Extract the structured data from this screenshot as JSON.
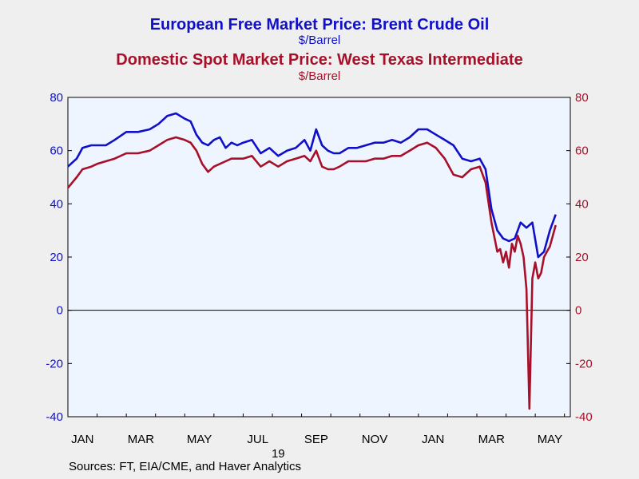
{
  "chart_data": {
    "type": "line",
    "title_1": "European Free Market Price: Brent Crude Oil",
    "unit_1": "$/Barrel",
    "title_2": "Domestic Spot Market Price: West Texas Intermediate",
    "unit_2": "$/Barrel",
    "ylim": [
      -40,
      80
    ],
    "yticks": [
      -40,
      -20,
      0,
      20,
      40,
      60,
      80
    ],
    "x_tick_labels": [
      "JAN",
      "MAR",
      "MAY",
      "JUL",
      "SEP",
      "NOV",
      "JAN",
      "MAR",
      "MAY"
    ],
    "x_tick_positions": [
      0.5,
      2.5,
      4.5,
      6.5,
      8.5,
      10.5,
      12.5,
      14.5,
      16.5
    ],
    "xlim": [
      0,
      17.2
    ],
    "year_label": "19",
    "source": "Sources:    FT, EIA/CME, and Haver Analytics",
    "series": [
      {
        "color": "#1010c8",
        "x": [
          0,
          0.3,
          0.5,
          0.8,
          1.0,
          1.3,
          1.6,
          2.0,
          2.4,
          2.8,
          3.1,
          3.4,
          3.7,
          4.0,
          4.2,
          4.4,
          4.6,
          4.8,
          5.0,
          5.2,
          5.4,
          5.6,
          5.8,
          6.0,
          6.3,
          6.6,
          6.9,
          7.2,
          7.5,
          7.8,
          8.1,
          8.3,
          8.5,
          8.7,
          8.9,
          9.1,
          9.3,
          9.6,
          9.9,
          10.2,
          10.5,
          10.8,
          11.1,
          11.4,
          11.7,
          12.0,
          12.3,
          12.6,
          12.9,
          13.2,
          13.5,
          13.8,
          14.1,
          14.3,
          14.5,
          14.7,
          14.9,
          15.1,
          15.3,
          15.5,
          15.7,
          15.9,
          16.1,
          16.3,
          16.5,
          16.7
        ],
        "values": [
          54,
          57,
          61,
          62,
          62,
          62,
          64,
          67,
          67,
          68,
          70,
          73,
          74,
          72,
          71,
          66,
          63,
          62,
          64,
          65,
          61,
          63,
          62,
          63,
          64,
          59,
          61,
          58,
          60,
          61,
          64,
          60,
          68,
          62,
          60,
          59,
          59,
          61,
          61,
          62,
          63,
          63,
          64,
          63,
          65,
          68,
          68,
          66,
          64,
          62,
          57,
          56,
          57,
          53,
          38,
          30,
          27,
          26,
          27,
          33,
          31,
          33,
          20,
          22,
          30,
          36
        ]
      },
      {
        "color": "#a8102a",
        "x": [
          0,
          0.3,
          0.5,
          0.8,
          1.0,
          1.3,
          1.6,
          2.0,
          2.4,
          2.8,
          3.1,
          3.4,
          3.7,
          4.0,
          4.2,
          4.4,
          4.6,
          4.8,
          5.0,
          5.2,
          5.4,
          5.6,
          5.8,
          6.0,
          6.3,
          6.6,
          6.9,
          7.2,
          7.5,
          7.8,
          8.1,
          8.3,
          8.5,
          8.7,
          8.9,
          9.1,
          9.3,
          9.6,
          9.9,
          10.2,
          10.5,
          10.8,
          11.1,
          11.4,
          11.7,
          12.0,
          12.3,
          12.6,
          12.9,
          13.2,
          13.5,
          13.8,
          14.1,
          14.3,
          14.5,
          14.7,
          14.8,
          14.9,
          15.0,
          15.1,
          15.2,
          15.3,
          15.4,
          15.5,
          15.6,
          15.7,
          15.8,
          15.9,
          16.0,
          16.1,
          16.2,
          16.3,
          16.4,
          16.5,
          16.6,
          16.7
        ],
        "values": [
          46,
          50,
          53,
          54,
          55,
          56,
          57,
          59,
          59,
          60,
          62,
          64,
          65,
          64,
          63,
          60,
          55,
          52,
          54,
          55,
          56,
          57,
          57,
          57,
          58,
          54,
          56,
          54,
          56,
          57,
          58,
          56,
          60,
          54,
          53,
          53,
          54,
          56,
          56,
          56,
          57,
          57,
          58,
          58,
          60,
          62,
          63,
          61,
          57,
          51,
          50,
          53,
          54,
          48,
          33,
          22,
          23,
          18,
          22,
          16,
          25,
          22,
          28,
          25,
          20,
          8,
          -37,
          12,
          18,
          12,
          14,
          20,
          22,
          24,
          28,
          32
        ]
      }
    ]
  }
}
